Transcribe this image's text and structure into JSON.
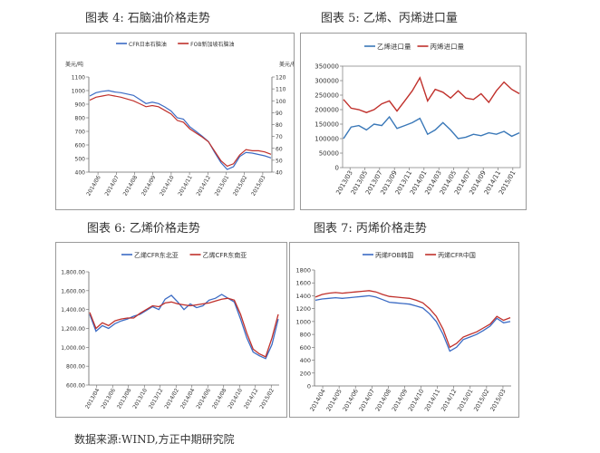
{
  "captions": {
    "c4": "图表 4:  石脑油价格走势",
    "c5": "图表 5:  乙烯、丙烯进口量",
    "c6": "图表 6:  乙烯价格走势",
    "c7": "图表 7:  丙烯价格走势"
  },
  "source": "数据来源:WIND,方正中期研究院",
  "chart_data": [
    {
      "id": "naphtha",
      "type": "line",
      "dual_axis": true,
      "ylabel_left": "美元/吨",
      "ylabel_right": "美元/桶",
      "ylim_left": [
        400,
        1100
      ],
      "yticks_left": [
        400,
        500,
        600,
        700,
        800,
        900,
        1000,
        1100
      ],
      "ylim_right": [
        40,
        120
      ],
      "yticks_right": [
        40,
        50,
        60,
        70,
        80,
        90,
        100,
        110,
        120
      ],
      "x_labels": [
        "2014/06",
        "2014/07",
        "2014/08",
        "2014/09",
        "2014/10",
        "2014/11",
        "2014/12",
        "2015/01",
        "2015/02",
        "2015/03"
      ],
      "series": [
        {
          "name": "CFR日本石脑油",
          "axis": "left",
          "color": "#3b6bc4",
          "values": [
            960,
            985,
            995,
            1000,
            990,
            985,
            975,
            965,
            935,
            905,
            915,
            905,
            880,
            850,
            800,
            790,
            735,
            700,
            665,
            625,
            545,
            470,
            420,
            440,
            515,
            545,
            540,
            530,
            520,
            505
          ]
        },
        {
          "name": "FOB新加坡石脑油",
          "axis": "right",
          "color": "#c0302b",
          "values": [
            100.5,
            103,
            104,
            105,
            104,
            103,
            101.5,
            100,
            97.5,
            95,
            96,
            95,
            92,
            89,
            83.5,
            82,
            76.5,
            73,
            69.5,
            65.5,
            57.5,
            49.5,
            45,
            47,
            54.5,
            59,
            58,
            58,
            57,
            55
          ]
        }
      ]
    },
    {
      "id": "imports",
      "type": "line",
      "ylim": [
        0,
        350000
      ],
      "yticks": [
        0,
        50000,
        100000,
        150000,
        200000,
        250000,
        300000,
        350000
      ],
      "x_labels": [
        "2013/03",
        "2013/05",
        "2013/07",
        "2013/09",
        "2013/11",
        "2014/01",
        "2014/03",
        "2014/05",
        "2014/07",
        "2014/09",
        "2014/11",
        "2015/01"
      ],
      "x_periods": [
        "2013/03",
        "2013/04",
        "2013/05",
        "2013/06",
        "2013/07",
        "2013/08",
        "2013/09",
        "2013/10",
        "2013/11",
        "2013/12",
        "2014/01",
        "2014/02",
        "2014/03",
        "2014/04",
        "2014/05",
        "2014/06",
        "2014/07",
        "2014/08",
        "2014/09",
        "2014/10",
        "2014/11",
        "2014/12",
        "2015/01",
        "2015/02"
      ],
      "series": [
        {
          "name": "乙烯进口量",
          "color": "#3a78b8",
          "values": [
            100000,
            140000,
            145000,
            130000,
            150000,
            145000,
            175000,
            135000,
            145000,
            155000,
            170000,
            115000,
            130000,
            155000,
            130000,
            100000,
            105000,
            115000,
            110000,
            120000,
            115000,
            125000,
            108000,
            120000
          ]
        },
        {
          "name": "丙烯进口量",
          "color": "#c0302b",
          "values": [
            235000,
            205000,
            200000,
            190000,
            200000,
            220000,
            230000,
            195000,
            230000,
            265000,
            310000,
            230000,
            270000,
            260000,
            240000,
            265000,
            240000,
            235000,
            255000,
            225000,
            265000,
            295000,
            270000,
            255000
          ]
        }
      ]
    },
    {
      "id": "ethylene",
      "type": "line",
      "ylim": [
        600,
        1800
      ],
      "yticks": [
        600,
        800,
        1000,
        1200,
        1400,
        1600,
        1800
      ],
      "ytick_labels": [
        "600.00",
        "800.00",
        "1,000.00",
        "1,200.00",
        "1,400.00",
        "1,600.00",
        "1,800.00"
      ],
      "x_labels": [
        "2013/04",
        "2013/06",
        "2013/08",
        "2013/10",
        "2013/12",
        "2014/02",
        "2014/04",
        "2014/06",
        "2014/08",
        "2014/10",
        "2014/12",
        "2015/02"
      ],
      "series": [
        {
          "name": "乙烯CFR东北亚",
          "color": "#3b6bc4",
          "values": [
            1350,
            1170,
            1230,
            1200,
            1250,
            1280,
            1300,
            1330,
            1350,
            1390,
            1430,
            1400,
            1510,
            1550,
            1480,
            1400,
            1460,
            1420,
            1440,
            1500,
            1520,
            1560,
            1520,
            1480,
            1300,
            1100,
            950,
            910,
            880,
            1030,
            1300
          ]
        },
        {
          "name": "乙烯CFR东南亚",
          "color": "#c0302b",
          "values": [
            1370,
            1200,
            1260,
            1230,
            1280,
            1300,
            1310,
            1310,
            1360,
            1400,
            1440,
            1430,
            1470,
            1480,
            1460,
            1450,
            1440,
            1450,
            1460,
            1470,
            1490,
            1510,
            1520,
            1500,
            1350,
            1150,
            980,
            930,
            900,
            1100,
            1350
          ]
        }
      ]
    },
    {
      "id": "propylene",
      "type": "line",
      "ylim": [
        0,
        1800
      ],
      "yticks": [
        0,
        200,
        400,
        600,
        800,
        1000,
        1200,
        1400,
        1600,
        1800
      ],
      "x_labels": [
        "2014/04",
        "2014/05",
        "2014/06",
        "2014/07",
        "2014/08",
        "2014/09",
        "2014/10",
        "2014/11",
        "2014/12",
        "2015/01",
        "2015/02",
        "2015/03"
      ],
      "series": [
        {
          "name": "丙烯FOB韩国",
          "color": "#3b6bc4",
          "values": [
            1330,
            1350,
            1360,
            1370,
            1360,
            1370,
            1380,
            1390,
            1400,
            1380,
            1340,
            1300,
            1290,
            1280,
            1270,
            1240,
            1210,
            1120,
            1000,
            800,
            540,
            600,
            720,
            760,
            800,
            860,
            930,
            1050,
            980,
            1000
          ]
        },
        {
          "name": "丙烯CFR中国",
          "color": "#c0302b",
          "values": [
            1380,
            1420,
            1440,
            1450,
            1440,
            1450,
            1460,
            1470,
            1480,
            1460,
            1420,
            1390,
            1380,
            1370,
            1360,
            1330,
            1290,
            1200,
            1080,
            880,
            600,
            660,
            760,
            800,
            840,
            900,
            960,
            1080,
            1020,
            1060
          ]
        }
      ]
    }
  ]
}
